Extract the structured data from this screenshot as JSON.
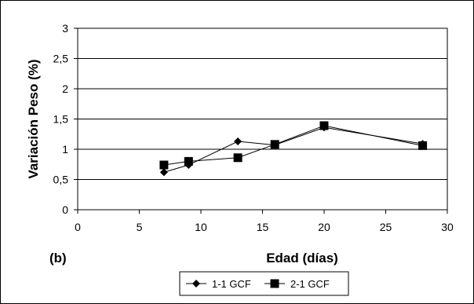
{
  "chart_data": {
    "type": "line",
    "panel_label": "(b)",
    "xlabel": "Edad (días)",
    "ylabel": "Variación Peso (%)",
    "xlim": [
      0,
      30
    ],
    "ylim": [
      0,
      3
    ],
    "x_ticks": [
      "0",
      "5",
      "10",
      "15",
      "20",
      "25",
      "30"
    ],
    "y_ticks": [
      "0",
      "0,5",
      "1",
      "1,5",
      "2",
      "2,5",
      "3"
    ],
    "grid": "horizontal",
    "legend_position": "bottom",
    "series": [
      {
        "name": "1-1 GCF",
        "marker": "diamond",
        "x": [
          7,
          9,
          13,
          16,
          20,
          28
        ],
        "y": [
          0.62,
          0.74,
          1.13,
          1.07,
          1.36,
          1.09
        ]
      },
      {
        "name": "2-1 GCF",
        "marker": "square",
        "x": [
          7,
          9,
          13,
          16,
          20,
          28
        ],
        "y": [
          0.74,
          0.8,
          0.86,
          1.08,
          1.39,
          1.06
        ]
      }
    ]
  }
}
